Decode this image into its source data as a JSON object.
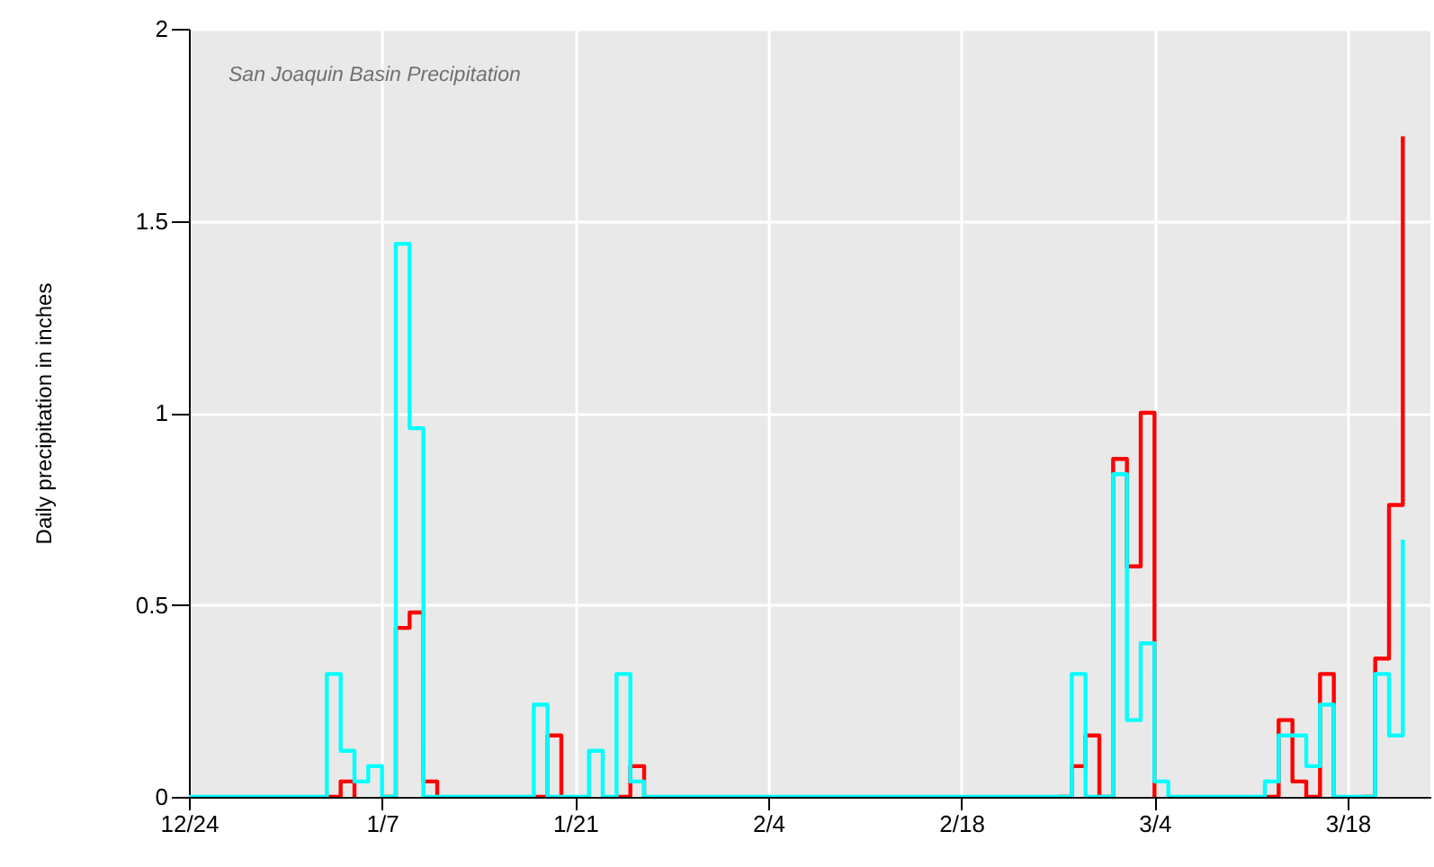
{
  "chart_data": {
    "type": "step",
    "title": "San Joaquin Basin Precipitation",
    "ylabel": "Daily precipitation in inches",
    "categories": [
      "12/24",
      null,
      null,
      null,
      null,
      null,
      null,
      null,
      null,
      null,
      null,
      null,
      null,
      null,
      "1/7",
      null,
      null,
      null,
      null,
      null,
      null,
      null,
      null,
      null,
      null,
      null,
      null,
      null,
      "1/21",
      null,
      null,
      null,
      null,
      null,
      null,
      null,
      null,
      null,
      null,
      null,
      null,
      null,
      "2/4",
      null,
      null,
      null,
      null,
      null,
      null,
      null,
      null,
      null,
      null,
      null,
      null,
      null,
      "2/18",
      null,
      null,
      null,
      null,
      null,
      null,
      null,
      null,
      null,
      null,
      null,
      null,
      null,
      "3/4",
      null,
      null,
      null,
      null,
      null,
      null,
      null,
      null,
      null,
      null,
      null,
      null,
      null,
      "3/18",
      null,
      null,
      null,
      null,
      null,
      null
    ],
    "ylim": [
      0,
      2
    ],
    "yticks": [
      0,
      0.5,
      1,
      1.5,
      2
    ],
    "grid": true,
    "series": [
      {
        "color": "#ff0000",
        "values": [
          null,
          null,
          null,
          null,
          null,
          null,
          null,
          null,
          null,
          null,
          0,
          0.04,
          0,
          null,
          0,
          0.44,
          0.48,
          0.04,
          0,
          null,
          null,
          null,
          null,
          null,
          null,
          0,
          0.16,
          0,
          null,
          null,
          null,
          0,
          0.08,
          0,
          null,
          null,
          null,
          null,
          null,
          null,
          null,
          null,
          null,
          null,
          null,
          null,
          null,
          null,
          null,
          null,
          null,
          null,
          null,
          null,
          null,
          null,
          null,
          null,
          null,
          null,
          null,
          null,
          null,
          0,
          0.08,
          0.16,
          0,
          0.88,
          0.6,
          1.0,
          0,
          null,
          null,
          null,
          null,
          null,
          null,
          null,
          0,
          0.2,
          0.04,
          0,
          0.32,
          0,
          null,
          0,
          0.36,
          0.76,
          1.72,
          null,
          null
        ]
      },
      {
        "color": "#00ffff",
        "values": [
          0,
          0,
          0,
          0,
          0,
          0,
          0,
          0,
          0,
          0,
          0.32,
          0.12,
          0.04,
          0.08,
          0,
          1.44,
          0.96,
          0,
          0,
          0,
          0,
          0,
          0,
          0,
          0,
          0.24,
          0,
          0,
          0,
          0.12,
          0,
          0.32,
          0.04,
          0,
          0,
          0,
          0,
          0,
          0,
          0,
          0,
          0,
          0,
          0,
          0,
          0,
          0,
          0,
          0,
          0,
          0,
          0,
          0,
          0,
          0,
          0,
          0,
          0,
          0,
          0,
          0,
          0,
          0,
          0,
          0.32,
          0,
          0,
          0.84,
          0.2,
          0.4,
          0.04,
          0,
          0,
          0,
          0,
          0,
          0,
          0,
          0.04,
          0.16,
          0.16,
          0.08,
          0.24,
          0,
          0,
          0,
          0.32,
          0.16,
          0.67,
          null,
          null
        ]
      }
    ]
  }
}
